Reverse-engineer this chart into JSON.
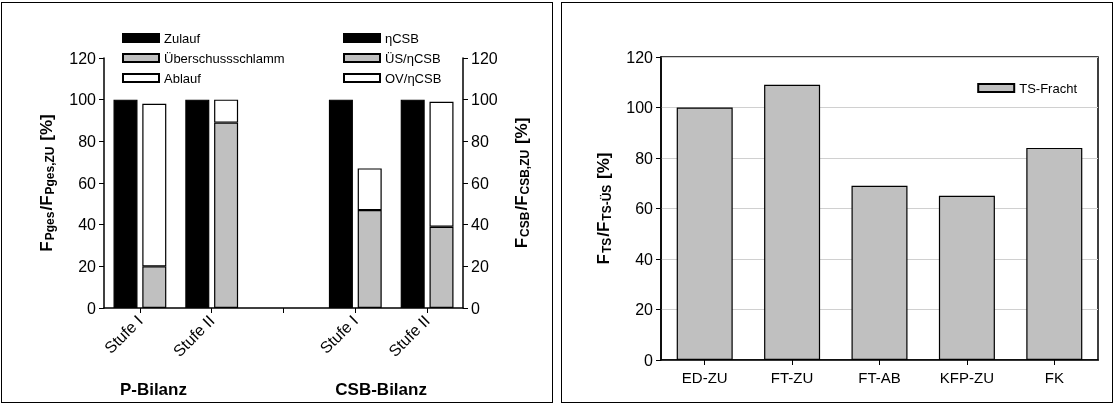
{
  "chart_data": [
    {
      "type": "bar",
      "stacked": true,
      "ylabel": "F$_{Pges}$/F$_{Pges,ZU}$ [%]",
      "y2label": "F$_{CSB}$/F$_{CSB,ZU}$ [%]",
      "categories": [
        "Stufe I",
        "Stufe II",
        null,
        "Stufe I",
        "Stufe II"
      ],
      "series": [
        {
          "name": "Zulauf",
          "color": "#000000",
          "values": [
            100,
            100,
            null,
            null,
            null
          ]
        },
        {
          "name": "ηCSB",
          "color": "#000000",
          "values": [
            null,
            null,
            null,
            100,
            100
          ]
        }
      ],
      "ylim": [
        0,
        120
      ],
      "yticks": [
        0,
        20,
        40,
        60,
        80,
        100,
        120
      ],
      "y2lim": [
        0,
        120
      ],
      "y2ticks": [
        0,
        20,
        40,
        60,
        80,
        100,
        120
      ],
      "legend": "top",
      "annotations": [
        "P-Bilanz",
        "CSB-Bilanz"
      ]
    },
    {
      "type": "bar",
      "stacked": true,
      "tick_labels": false,
      "categories": [
        null,
        null,
        null,
        null,
        null
      ],
      "series": [
        {
          "name": "Überschussschlamm",
          "color": "#c0c0c0",
          "values": [
            20,
            89,
            null,
            null,
            null
          ]
        },
        {
          "name": "Ablauf",
          "color": "#ffffff",
          "values": [
            78,
            11,
            null,
            null,
            null
          ]
        },
        {
          "name": "ÜS/ηCSB",
          "color": "#c0c0c0",
          "values": [
            null,
            null,
            null,
            47,
            39
          ]
        },
        {
          "name": "OV/ηCSB",
          "color": "#ffffff",
          "values": [
            null,
            null,
            null,
            20,
            60
          ]
        }
      ],
      "ylim": [
        0,
        120
      ],
      "legend": "top"
    },
    {
      "type": "bar",
      "ylabel": "F$_{TS}$/F$_{TS-ÜS}$ [%]",
      "categories": [
        "ED-ZU",
        "FT-ZU",
        "FT-AB",
        "KFP-ZU",
        "FK"
      ],
      "series": [
        {
          "name": "TS-Fracht",
          "color": "#c0c0c0",
          "values": [
            100,
            109,
            69,
            65,
            84
          ]
        }
      ],
      "ylim": [
        0,
        120
      ],
      "yticks": [
        0,
        20,
        40,
        60,
        80,
        100,
        120
      ],
      "grid": "y",
      "legend": "top right"
    }
  ]
}
